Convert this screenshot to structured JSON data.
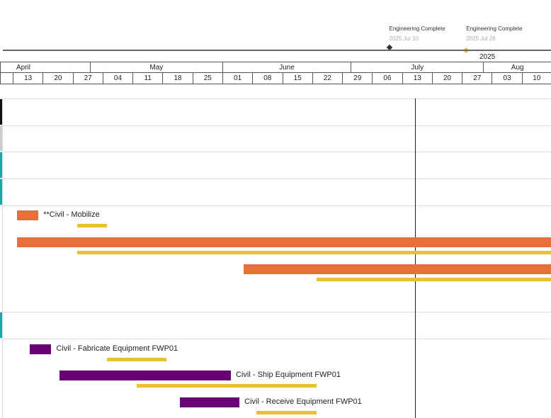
{
  "timeline": {
    "start": "2025-04-13",
    "year_label": "2025",
    "today": "2025-07-16"
  },
  "milestones": [
    {
      "title": "Engineering Complete",
      "date_label": "2025 Jul 10",
      "date": "2025-07-10",
      "color": "#333333"
    },
    {
      "title": "Engineering Complete",
      "date_label": "2025 Jul 28",
      "date": "2025-07-28",
      "color": "#e8c030"
    }
  ],
  "months": [
    {
      "label": "April",
      "start": "2025-04-06",
      "end": "2025-05-01"
    },
    {
      "label": "May",
      "start": "2025-05-01",
      "end": "2025-06-01"
    },
    {
      "label": "June",
      "start": "2025-06-01",
      "end": "2025-07-01"
    },
    {
      "label": "July",
      "start": "2025-07-01",
      "end": "2025-08-01"
    },
    {
      "label": "Aug",
      "start": "2025-08-01",
      "end": "2025-09-01"
    }
  ],
  "weeks": [
    "13",
    "20",
    "27",
    "04",
    "11",
    "18",
    "25",
    "01",
    "08",
    "15",
    "22",
    "29",
    "06",
    "13",
    "20",
    "27",
    "03",
    "10"
  ],
  "colors": {
    "planned": "#e8c030",
    "civil": "#e8703a",
    "equipment": "#6a0075",
    "teal": "#1aa7a7"
  },
  "tasks": [
    {
      "label": "**Civil - Mobilize",
      "start": "2025-04-14",
      "end": "2025-04-19",
      "base_start": "2025-04-28",
      "base_end": "2025-05-05",
      "color": "#e8703a"
    },
    {
      "label": "",
      "start": "2025-04-14",
      "end": "2025-09-30",
      "base_start": "2025-04-28",
      "base_end": "2025-09-30",
      "color": "#e8703a"
    },
    {
      "label": "",
      "start": "2025-06-06",
      "end": "2025-09-30",
      "base_start": "2025-06-23",
      "base_end": "2025-09-30",
      "color": "#e8703a"
    },
    {
      "label": "Civil - Fabricate Equipment FWP01",
      "start": "2025-04-17",
      "end": "2025-04-22",
      "base_start": "2025-05-05",
      "base_end": "2025-05-19",
      "color": "#6a0075"
    },
    {
      "label": "Civil - Ship Equipment FWP01",
      "start": "2025-04-24",
      "end": "2025-06-03",
      "base_start": "2025-05-12",
      "base_end": "2025-06-23",
      "color": "#6a0075"
    },
    {
      "label": "Civil - Receive Equipment FWP01",
      "start": "2025-05-22",
      "end": "2025-06-05",
      "base_start": "2025-06-09",
      "base_end": "2025-06-23",
      "color": "#6a0075"
    }
  ]
}
